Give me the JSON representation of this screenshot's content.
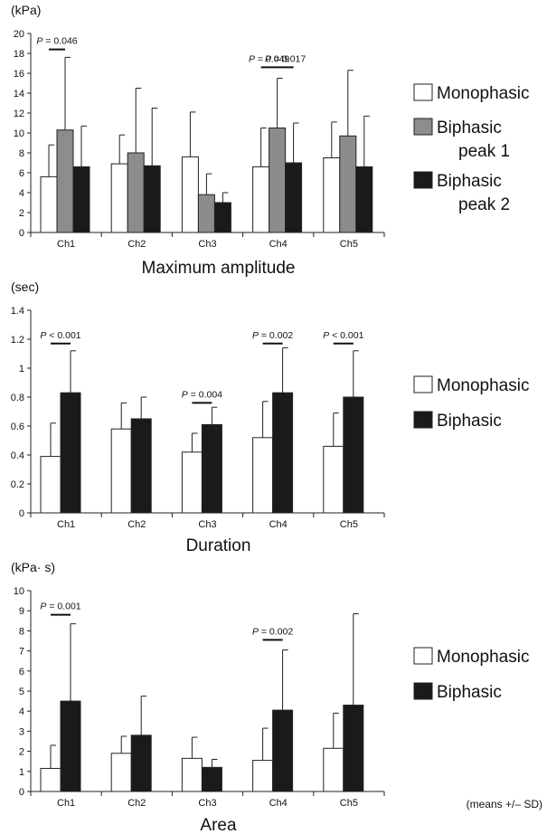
{
  "chart_data": [
    {
      "type": "bar",
      "ylabel": "(kPa)",
      "xlabel": "Maximum amplitude",
      "ylim": [
        0,
        20
      ],
      "yticks": [
        0,
        2,
        4,
        6,
        8,
        10,
        12,
        14,
        16,
        18,
        20
      ],
      "grid": false,
      "legend_position": "right",
      "categories": [
        "Ch1",
        "Ch2",
        "Ch3",
        "Ch4",
        "Ch5"
      ],
      "series": [
        {
          "name": "Monophasic",
          "color": "#ffffff",
          "values": [
            5.6,
            6.9,
            7.6,
            6.6,
            7.5
          ],
          "sd": [
            3.2,
            2.9,
            4.5,
            3.9,
            3.6
          ]
        },
        {
          "name": "Biphasic peak 1",
          "color": "#8c8c8c",
          "values": [
            10.3,
            8.0,
            3.8,
            10.5,
            9.7
          ],
          "sd": [
            7.3,
            6.5,
            2.1,
            5.0,
            6.6
          ]
        },
        {
          "name": "Biphasic peak 2",
          "color": "#1a1a1a",
          "values": [
            6.6,
            6.7,
            3.0,
            7.0,
            6.6
          ],
          "sd": [
            4.1,
            5.8,
            1.0,
            4.0,
            5.1
          ]
        }
      ],
      "legend_labels": [
        {
          "series": 0,
          "lines": [
            "Monophasic"
          ]
        },
        {
          "series": 1,
          "lines": [
            "Biphasic",
            "peak 1"
          ]
        },
        {
          "series": 2,
          "lines": [
            "Biphasic",
            "peak 2"
          ]
        }
      ],
      "annotations": [
        {
          "text": "P = 0.046",
          "from": [
            0,
            0
          ],
          "to": [
            0,
            1
          ],
          "y": 18.4
        },
        {
          "text": "P = 0.049",
          "from": [
            3,
            0
          ],
          "to": [
            3,
            1
          ],
          "y": 16.6
        },
        {
          "text": "P = 0.017",
          "from": [
            3,
            1
          ],
          "to": [
            3,
            2
          ],
          "y": 16.6
        }
      ]
    },
    {
      "type": "bar",
      "ylabel": "(sec)",
      "xlabel": "Duration",
      "ylim": [
        0,
        1.4
      ],
      "yticks": [
        0,
        0.2,
        0.4,
        0.6,
        0.8,
        1,
        1.2,
        1.4
      ],
      "grid": false,
      "legend_position": "right",
      "categories": [
        "Ch1",
        "Ch2",
        "Ch3",
        "Ch4",
        "Ch5"
      ],
      "series": [
        {
          "name": "Monophasic",
          "color": "#ffffff",
          "values": [
            0.39,
            0.58,
            0.42,
            0.52,
            0.46
          ],
          "sd": [
            0.23,
            0.18,
            0.13,
            0.25,
            0.23
          ]
        },
        {
          "name": "Biphasic",
          "color": "#1a1a1a",
          "values": [
            0.83,
            0.65,
            0.61,
            0.83,
            0.8
          ],
          "sd": [
            0.29,
            0.15,
            0.12,
            0.31,
            0.32
          ]
        }
      ],
      "legend_labels": [
        {
          "series": 0,
          "lines": [
            "Monophasic"
          ]
        },
        {
          "series": 1,
          "lines": [
            "Biphasic"
          ]
        }
      ],
      "annotations": [
        {
          "text": "P < 0.001",
          "from": [
            0,
            0
          ],
          "to": [
            0,
            1
          ],
          "y": 1.17
        },
        {
          "text": "P = 0.004",
          "from": [
            2,
            0
          ],
          "to": [
            2,
            1
          ],
          "y": 0.76
        },
        {
          "text": "P = 0.002",
          "from": [
            3,
            0
          ],
          "to": [
            3,
            1
          ],
          "y": 1.17
        },
        {
          "text": "P < 0.001",
          "from": [
            4,
            0
          ],
          "to": [
            4,
            1
          ],
          "y": 1.17
        }
      ]
    },
    {
      "type": "bar",
      "ylabel": "(kPa· s)",
      "xlabel": "Area",
      "ylim": [
        0,
        10
      ],
      "yticks": [
        0,
        1,
        2,
        3,
        4,
        5,
        6,
        7,
        8,
        9,
        10
      ],
      "grid": false,
      "legend_position": "right",
      "categories": [
        "Ch1",
        "Ch2",
        "Ch3",
        "Ch4",
        "Ch5"
      ],
      "series": [
        {
          "name": "Monophasic",
          "color": "#ffffff",
          "values": [
            1.15,
            1.9,
            1.65,
            1.55,
            2.15
          ],
          "sd": [
            1.15,
            0.85,
            1.05,
            1.6,
            1.75
          ]
        },
        {
          "name": "Biphasic",
          "color": "#1a1a1a",
          "values": [
            4.5,
            2.8,
            1.2,
            4.05,
            4.3
          ],
          "sd": [
            3.85,
            1.95,
            0.4,
            3.0,
            4.55
          ]
        }
      ],
      "legend_labels": [
        {
          "series": 0,
          "lines": [
            "Monophasic"
          ]
        },
        {
          "series": 1,
          "lines": [
            "Biphasic"
          ]
        }
      ],
      "annotations": [
        {
          "text": "P = 0.001",
          "from": [
            0,
            0
          ],
          "to": [
            0,
            1
          ],
          "y": 8.8
        },
        {
          "text": "P = 0.002",
          "from": [
            3,
            0
          ],
          "to": [
            3,
            1
          ],
          "y": 7.55
        }
      ]
    }
  ],
  "footnote": "(means +/– SD)"
}
